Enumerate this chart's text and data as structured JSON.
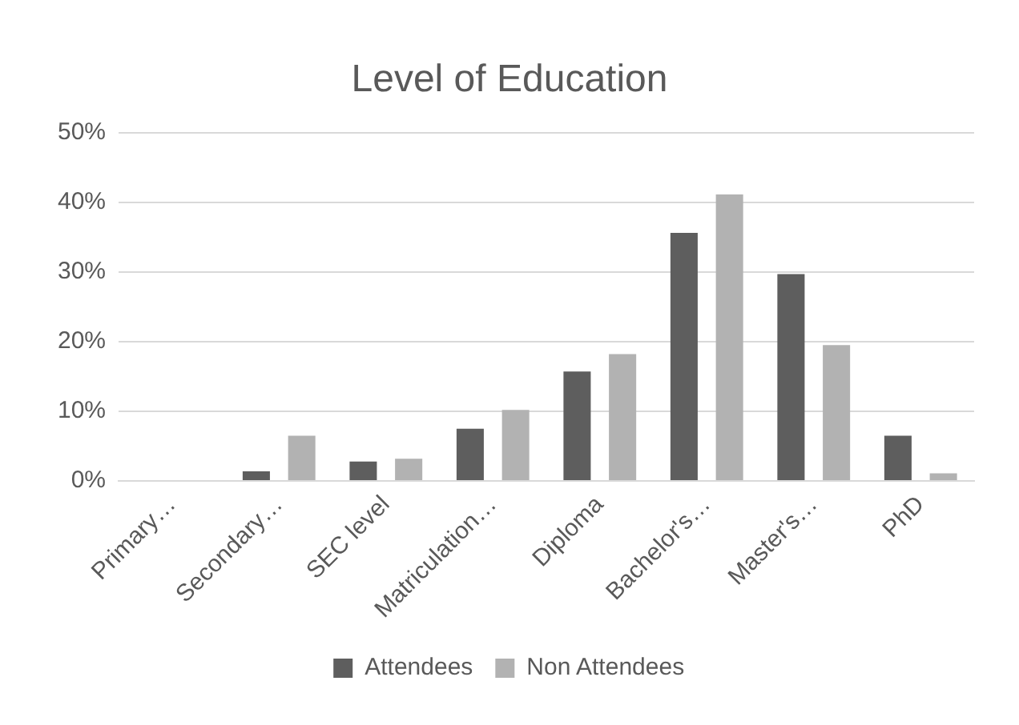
{
  "chart_data": {
    "type": "bar",
    "title": "Level of Education",
    "categories": [
      "Primary…",
      "Secondary…",
      "SEC level",
      "Matriculation…",
      "Diploma",
      "Bachelor's…",
      "Master's…",
      "PhD"
    ],
    "series": [
      {
        "name": "Attendees",
        "color": "#5e5e5e",
        "values": [
          0,
          1.4,
          2.8,
          7.5,
          15.7,
          35.6,
          29.7,
          6.5
        ]
      },
      {
        "name": "Non Attendees",
        "color": "#b2b2b2",
        "values": [
          0,
          6.5,
          3.2,
          10.2,
          18.2,
          41.1,
          19.5,
          1.1
        ]
      }
    ],
    "ylim": [
      0,
      50
    ],
    "yticks": [
      {
        "value": 0,
        "label": "0%"
      },
      {
        "value": 10,
        "label": "10%"
      },
      {
        "value": 20,
        "label": "20%"
      },
      {
        "value": 30,
        "label": "30%"
      },
      {
        "value": 40,
        "label": "40%"
      },
      {
        "value": 50,
        "label": "50%"
      }
    ],
    "grid": "y",
    "legend": "bottom"
  }
}
